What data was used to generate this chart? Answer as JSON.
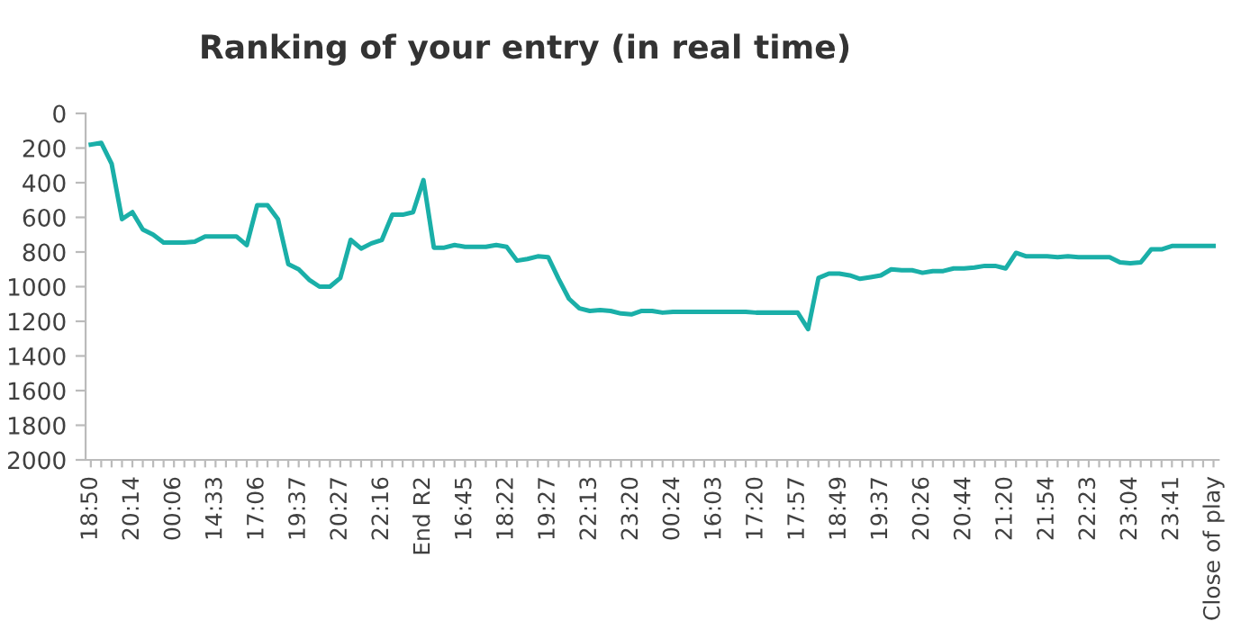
{
  "chart_data": {
    "type": "line",
    "title": "Ranking of your entry (in real time)",
    "categories": [
      "18:50",
      null,
      null,
      null,
      "20:14",
      null,
      null,
      null,
      "00:06",
      null,
      null,
      null,
      "14:33",
      null,
      null,
      null,
      "17:06",
      null,
      null,
      null,
      "19:37",
      null,
      null,
      null,
      "20:27",
      null,
      null,
      null,
      "22:16",
      null,
      null,
      null,
      "End R2",
      null,
      null,
      null,
      "16:45",
      null,
      null,
      null,
      "18:22",
      null,
      null,
      null,
      "19:27",
      null,
      null,
      null,
      "22:13",
      null,
      null,
      null,
      "23:20",
      null,
      null,
      null,
      "00:24",
      null,
      null,
      null,
      "16:03",
      null,
      null,
      null,
      "17:20",
      null,
      null,
      null,
      "17:57",
      null,
      null,
      null,
      "18:49",
      null,
      null,
      null,
      "19:37",
      null,
      null,
      null,
      "20:26",
      null,
      null,
      null,
      "20:44",
      null,
      null,
      null,
      "21:20",
      null,
      null,
      null,
      "21:54",
      null,
      null,
      null,
      "22:23",
      null,
      null,
      null,
      "23:04",
      null,
      null,
      null,
      "23:41",
      null,
      null,
      null,
      "Close of play"
    ],
    "series": [
      {
        "color": "#1aafa8",
        "values": [
          180,
          170,
          290,
          610,
          570,
          670,
          700,
          745,
          745,
          745,
          740,
          710,
          710,
          710,
          710,
          760,
          530,
          530,
          610,
          870,
          900,
          960,
          1000,
          1000,
          950,
          730,
          780,
          750,
          730,
          585,
          585,
          570,
          385,
          775,
          775,
          760,
          770,
          770,
          770,
          760,
          770,
          850,
          840,
          825,
          830,
          955,
          1070,
          1125,
          1140,
          1135,
          1140,
          1155,
          1160,
          1140,
          1140,
          1150,
          1145,
          1145,
          1145,
          1145,
          1145,
          1145,
          1145,
          1145,
          1150,
          1150,
          1150,
          1150,
          1150,
          1245,
          950,
          925,
          925,
          935,
          955,
          945,
          935,
          900,
          905,
          905,
          920,
          910,
          910,
          895,
          895,
          890,
          880,
          880,
          895,
          805,
          825,
          825,
          825,
          830,
          825,
          830,
          830,
          830,
          830,
          860,
          865,
          860,
          785,
          785,
          765,
          765,
          765,
          765,
          765
        ]
      }
    ],
    "ylim": [
      2000,
      0
    ],
    "yticks": [
      0,
      200,
      400,
      600,
      800,
      1000,
      1200,
      1400,
      1600,
      1800,
      2000
    ],
    "grid": false,
    "marker": "none",
    "line_style": "solid"
  }
}
